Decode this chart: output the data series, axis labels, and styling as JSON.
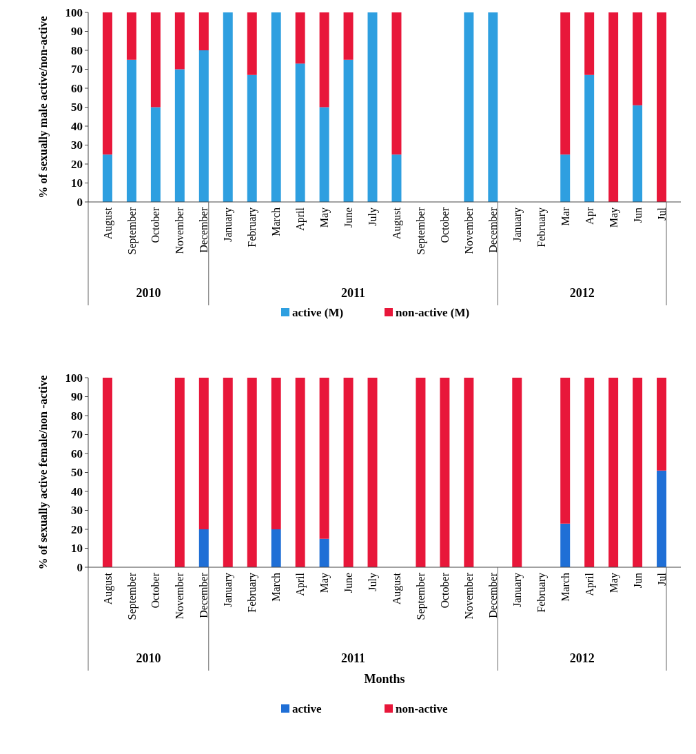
{
  "chart_data": [
    {
      "type": "bar",
      "stacked": true,
      "ylabel": "% of sexually male active/non-active",
      "categories": [
        "August",
        "September",
        "October",
        "November",
        "December",
        "January",
        "February",
        "March",
        "April",
        "May",
        "June",
        "July",
        "August",
        "September",
        "October",
        "November",
        "December",
        "January",
        "February",
        "Mar",
        "Apr",
        "May",
        "Jun",
        "Jul"
      ],
      "series": [
        {
          "name": "active (M)",
          "color": "#2e9fe0",
          "values": [
            25,
            75,
            50,
            70,
            80,
            100,
            67,
            100,
            73,
            50,
            75,
            100,
            25,
            0,
            0,
            100,
            100,
            0,
            0,
            25,
            67,
            0,
            51,
            0
          ]
        },
        {
          "name": "non-active (M)",
          "color": "#e8173a",
          "values": [
            75,
            25,
            50,
            30,
            20,
            0,
            33,
            0,
            27,
            50,
            25,
            0,
            75,
            0,
            0,
            0,
            0,
            0,
            0,
            75,
            33,
            100,
            49,
            100
          ]
        }
      ],
      "ylim": [
        0,
        100
      ],
      "yticks": [
        0,
        10,
        20,
        30,
        40,
        50,
        60,
        70,
        80,
        90,
        100
      ],
      "legend": "bottom",
      "annotations": [
        "2010",
        "2011",
        "2012"
      ]
    },
    {
      "type": "bar",
      "stacked": true,
      "ylabel": "% of sexually active female/non -active",
      "xlabel": "Months",
      "categories": [
        "August",
        "September",
        "October",
        "November",
        "December",
        "January",
        "February",
        "March",
        "April",
        "May",
        "June",
        "July",
        "August",
        "September",
        "October",
        "November",
        "December",
        "January",
        "February",
        "March",
        "April",
        "May",
        "Jun",
        "Jul"
      ],
      "series": [
        {
          "name": "active",
          "color": "#1f6fd6",
          "values": [
            0,
            0,
            0,
            0,
            20,
            0,
            0,
            20,
            0,
            15,
            0,
            0,
            0,
            0,
            0,
            0,
            0,
            0,
            0,
            23,
            0,
            0,
            0,
            51
          ]
        },
        {
          "name": "non-active",
          "color": "#e8173a",
          "values": [
            100,
            0,
            0,
            100,
            80,
            100,
            100,
            80,
            100,
            85,
            100,
            100,
            0,
            100,
            100,
            100,
            0,
            100,
            0,
            77,
            100,
            100,
            100,
            49
          ]
        }
      ],
      "ylim": [
        0,
        100
      ],
      "yticks": [
        0,
        10,
        20,
        30,
        40,
        50,
        60,
        70,
        80,
        90,
        100
      ],
      "legend": "bottom",
      "annotations": [
        "2010",
        "2011",
        "2012"
      ]
    }
  ]
}
